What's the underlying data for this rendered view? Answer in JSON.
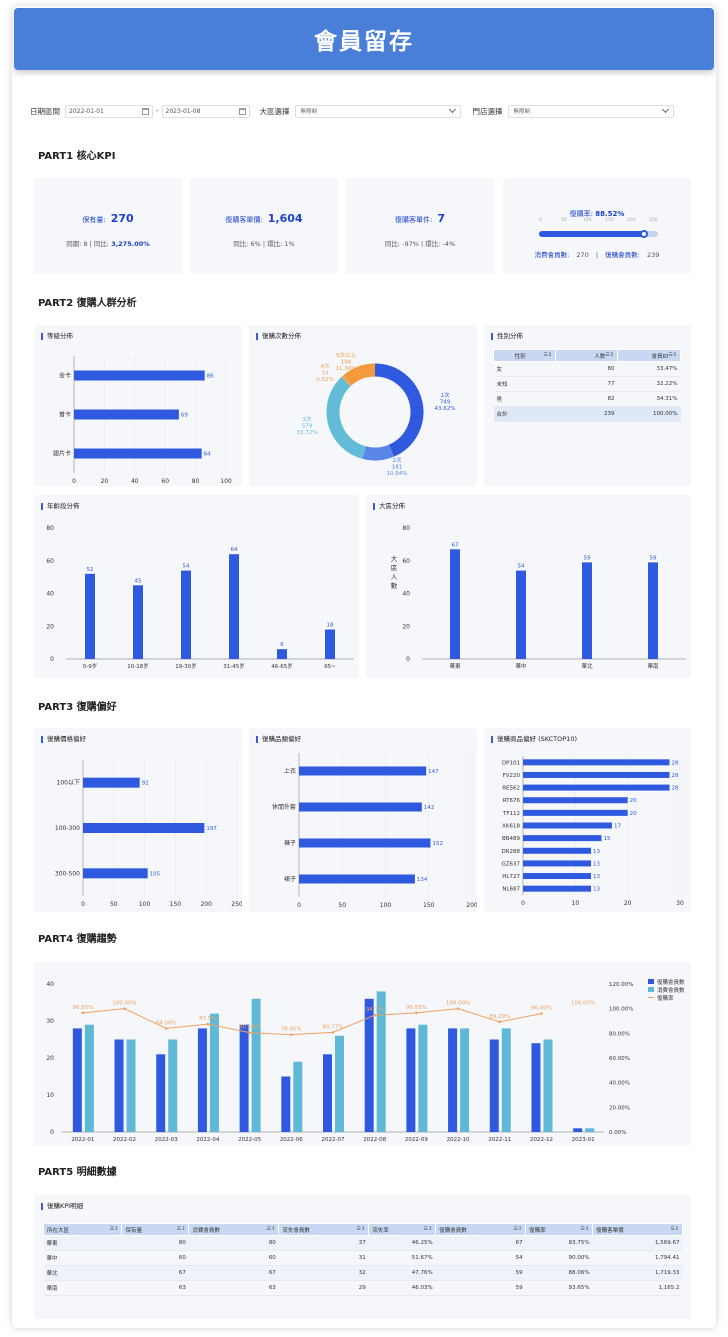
{
  "title": "會員留存",
  "filters": {
    "date_label": "日期區間",
    "date_start": "2022-01-01",
    "date_sep": "-",
    "date_end": "2023-01-08",
    "region_label": "大區選擇",
    "region_value": "無限制",
    "store_label": "門店選擇",
    "store_value": "無限制"
  },
  "parts": {
    "p1": "PART1 核心KPI",
    "p2": "PART2 復購人群分析",
    "p3": "PART3 復購偏好",
    "p4": "PART4 復購趨勢",
    "p5": "PART5 明細數據"
  },
  "kpi": [
    {
      "label": "保有量:",
      "value": "270",
      "sub1": "同期: 8  | 同比: ",
      "sub2": "3,275.00%"
    },
    {
      "label": "復購客單價:",
      "value": "1,604",
      "sub1": "同比: 6%  |  環比: 1%",
      "sub2": ""
    },
    {
      "label": "復購客單件:",
      "value": "7",
      "sub1": "同比: -97%  |  環比: -4%",
      "sub2": ""
    }
  ],
  "repurchase": {
    "label": "復購率: ",
    "value": "88.52%",
    "fraction": 0.8852,
    "ticks": [
      "0",
      "50",
      "100",
      "150",
      "200",
      "250"
    ],
    "consume_label": "消費會員數:",
    "consume_value": "270",
    "sep": "|",
    "repeat_label": "復購會員數:",
    "repeat_value": "239"
  },
  "colors": {
    "bar": "#2f5ae0",
    "bar2": "#5fb9d6",
    "line": "#f0a060",
    "card": "#f5f7fb",
    "header": "#4a7fd9"
  },
  "chart_data": [
    {
      "id": "level",
      "type": "bar",
      "orientation": "horizontal",
      "title": "等級分佈",
      "categories": [
        "金卡",
        "普卡",
        "銀片卡"
      ],
      "values": [
        86,
        69,
        84
      ],
      "xlim": [
        0,
        100
      ],
      "ticks": [
        0,
        20,
        40,
        60,
        80,
        100
      ]
    },
    {
      "id": "freq",
      "type": "pie",
      "title": "復購次數分佈",
      "slices": [
        {
          "label": "1次",
          "count": 749,
          "percent": "43.62%",
          "color": "#2f5ae0"
        },
        {
          "label": "2次",
          "count": 181,
          "percent": "10.54%",
          "color": "#5a86ea"
        },
        {
          "label": "3次",
          "count": 579,
          "percent": "33.72%",
          "color": "#62bcd8"
        },
        {
          "label": "4次",
          "count": 14,
          "percent": "0.82%",
          "color": "#f3a35a"
        },
        {
          "label": "5次以上",
          "count": 194,
          "percent": "11.30%",
          "color": "#f39b3c"
        }
      ]
    },
    {
      "id": "gender",
      "type": "table",
      "title": "性別分佈",
      "columns": [
        "性別",
        "人數",
        "會員ID"
      ],
      "rows": [
        [
          "女",
          "80",
          "33.47%"
        ],
        [
          "未知",
          "77",
          "32.22%"
        ],
        [
          "男",
          "82",
          "34.31%"
        ]
      ],
      "total": [
        "合計",
        "239",
        "100.00%"
      ]
    },
    {
      "id": "age",
      "type": "bar",
      "title": "年齡段分佈",
      "categories": [
        "0-9岁",
        "10-18岁",
        "19-30岁",
        "31-45岁",
        "46-65岁",
        "65~"
      ],
      "values": [
        52,
        45,
        54,
        64,
        6,
        18
      ],
      "ylim": [
        0,
        80
      ],
      "ticks": [
        0,
        20,
        40,
        60,
        80
      ]
    },
    {
      "id": "region",
      "type": "bar",
      "title": "大區分佈",
      "ylabel": "大區人數",
      "categories": [
        "華東",
        "華中",
        "華北",
        "華南"
      ],
      "values": [
        67,
        54,
        59,
        59
      ],
      "ylim": [
        0,
        80
      ],
      "ticks": [
        0,
        20,
        40,
        60,
        80
      ]
    },
    {
      "id": "price",
      "type": "bar",
      "orientation": "horizontal",
      "title": "復購價格偏好",
      "categories": [
        "100以下",
        "100-300",
        "300-500"
      ],
      "values": [
        92,
        197,
        105
      ],
      "xlim": [
        0,
        250
      ],
      "ticks": [
        0,
        50,
        100,
        150,
        200,
        250
      ]
    },
    {
      "id": "category",
      "type": "bar",
      "orientation": "horizontal",
      "title": "復購品類偏好",
      "categories": [
        "上衣",
        "休閒外套",
        "褲子",
        "裙子"
      ],
      "values": [
        147,
        142,
        152,
        134
      ],
      "xlim": [
        0,
        200
      ],
      "ticks": [
        0,
        50,
        100,
        150,
        200
      ]
    },
    {
      "id": "sku",
      "type": "bar",
      "orientation": "horizontal",
      "title": "復購商品偏好 (SKCTOP10)",
      "categories": [
        "DP101",
        "FV220",
        "RE562",
        "RT676",
        "TF112",
        "XK618",
        "BB489",
        "DR288",
        "GZ637",
        "HL727",
        "NL687"
      ],
      "values": [
        28,
        28,
        28,
        20,
        20,
        17,
        15,
        13,
        13,
        13,
        13
      ],
      "xlim": [
        0,
        30
      ],
      "ticks": [
        0,
        10,
        20,
        30
      ]
    },
    {
      "id": "trend",
      "type": "bar",
      "title": "",
      "categories": [
        "2022-01",
        "2022-02",
        "2022-03",
        "2022-04",
        "2022-05",
        "2022-06",
        "2022-07",
        "2022-08",
        "2022-09",
        "2022-10",
        "2022-11",
        "2022-12",
        "2023-01"
      ],
      "series": [
        {
          "name": "復購會員數",
          "type": "bar",
          "values": [
            28,
            25,
            21,
            28,
            29,
            15,
            21,
            36,
            28,
            28,
            25,
            24,
            1
          ]
        },
        {
          "name": "消費會員數",
          "type": "bar",
          "values": [
            29,
            25,
            25,
            32,
            36,
            19,
            26,
            38,
            29,
            28,
            28,
            25,
            1
          ]
        },
        {
          "name": "復購率",
          "type": "line",
          "values": [
            96.55,
            100.0,
            84.0,
            87.5,
            80.56,
            78.95,
            80.77,
            94.74,
            96.55,
            100.0,
            89.29,
            96.0,
            100.0
          ],
          "labels": [
            "96.55%",
            "100.00%",
            "84.00%",
            "87.5%",
            "80.56%",
            "78.95%",
            "80.77%",
            "94.7%",
            "96.55%",
            "100.00%",
            "89.29%",
            "96.00%",
            "100.00%"
          ]
        }
      ],
      "ylim": [
        0,
        40
      ],
      "ticks": [
        0,
        10,
        20,
        30,
        40
      ],
      "y2lim": [
        0,
        120
      ],
      "y2ticks": [
        "0.00%",
        "20.00%",
        "40.00%",
        "60.00%",
        "80.00%",
        "100.00%",
        "120.00%"
      ],
      "legend": "top-right"
    }
  ],
  "detail": {
    "title": "復購KPI明細",
    "columns": [
      "所在大區",
      "保有量",
      "消費會員數",
      "流失會員數",
      "流失率",
      "復購會員數",
      "復購率",
      "復購客單價"
    ],
    "rows": [
      [
        "華東",
        "80",
        "80",
        "37",
        "46.25%",
        "67",
        "83.75%",
        "1,569.67"
      ],
      [
        "華中",
        "60",
        "60",
        "31",
        "51.67%",
        "54",
        "90.00%",
        "1,794.41"
      ],
      [
        "華北",
        "67",
        "67",
        "32",
        "47.76%",
        "59",
        "88.06%",
        "1,719.33"
      ],
      [
        "華南",
        "63",
        "63",
        "29",
        "46.03%",
        "59",
        "93.65%",
        "1,165.2"
      ]
    ]
  }
}
